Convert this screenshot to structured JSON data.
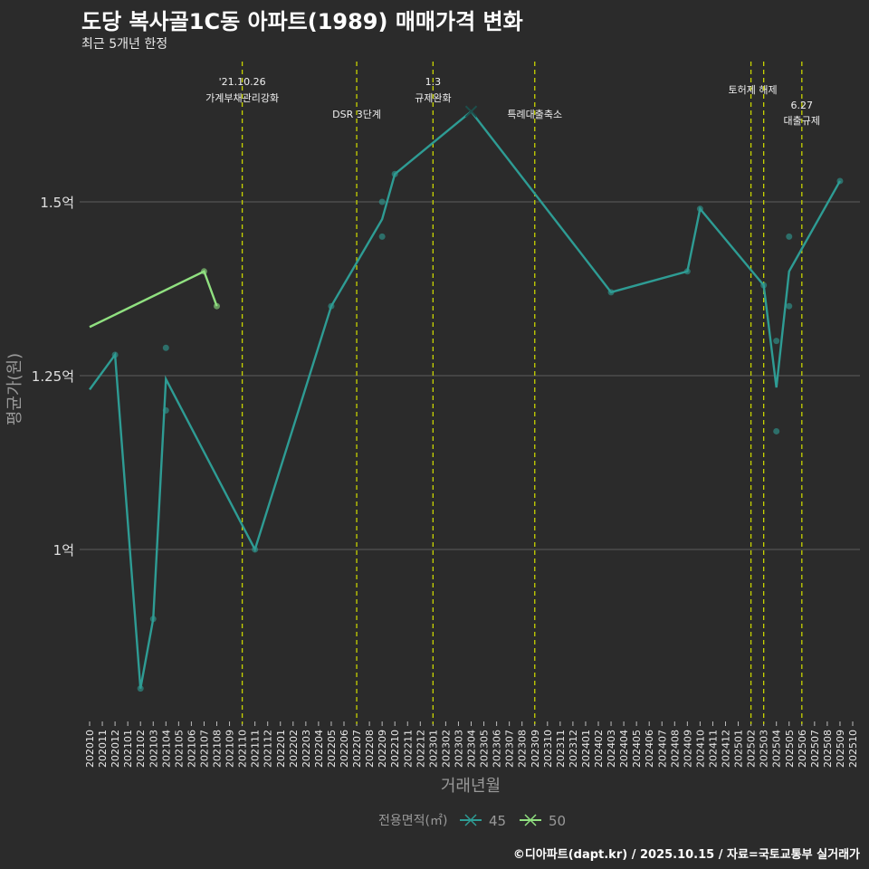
{
  "header": {
    "title": "도당 복사골1C동 아파트(1989) 매매가격 변화",
    "subtitle": "최근 5개년 한정"
  },
  "caption": "©디아파트(dapt.kr) / 2025.10.15 / 자료=국토교통부 실거래가",
  "chart_data": {
    "type": "line",
    "title": "도당 복사골1C동 아파트(1989) 매매가격 변화",
    "xlabel": "거래년월",
    "ylabel": "평균가(원)",
    "ylim": [
      0.75,
      1.7
    ],
    "yticks": [
      {
        "value": 1.0,
        "label": "1억"
      },
      {
        "value": 1.25,
        "label": "1.25억"
      },
      {
        "value": 1.5,
        "label": "1.5억"
      }
    ],
    "grid": true,
    "x_start": "2020-10",
    "x_end": "2025-10",
    "legend": {
      "title": "전용면적(㎡)",
      "position": "bottom"
    },
    "series": [
      {
        "name": "45",
        "color": "#2e9c94",
        "points": [
          [
            "2020-10",
            1.23
          ],
          [
            "2020-12",
            1.28
          ],
          [
            "2021-02",
            0.8
          ],
          [
            "2021-03",
            0.9
          ],
          [
            "2021-04",
            1.245
          ],
          [
            "2021-11",
            1.0
          ],
          [
            "2022-05",
            1.35
          ],
          [
            "2022-09",
            1.475
          ],
          [
            "2022-10",
            1.54
          ],
          [
            "2023-04",
            1.63
          ],
          [
            "2024-03",
            1.37
          ],
          [
            "2024-09",
            1.4
          ],
          [
            "2024-10",
            1.49
          ],
          [
            "2025-03",
            1.38
          ],
          [
            "2025-04",
            1.233
          ],
          [
            "2025-05",
            1.4
          ],
          [
            "2025-09",
            1.53
          ]
        ],
        "scatter": [
          [
            "2020-12",
            1.28
          ],
          [
            "2021-02",
            0.8
          ],
          [
            "2021-03",
            0.9
          ],
          [
            "2021-04",
            1.29
          ],
          [
            "2021-04",
            1.2
          ],
          [
            "2021-11",
            1.0
          ],
          [
            "2022-05",
            1.35
          ],
          [
            "2022-09",
            1.5
          ],
          [
            "2022-09",
            1.45
          ],
          [
            "2022-10",
            1.54
          ],
          [
            "2024-03",
            1.37
          ],
          [
            "2024-09",
            1.4
          ],
          [
            "2024-10",
            1.49
          ],
          [
            "2025-03",
            1.38
          ],
          [
            "2025-04",
            1.3
          ],
          [
            "2025-04",
            1.17
          ],
          [
            "2025-05",
            1.45
          ],
          [
            "2025-05",
            1.35
          ],
          [
            "2025-09",
            1.53
          ]
        ],
        "max_marker": [
          "2023-04",
          1.63
        ]
      },
      {
        "name": "50",
        "color": "#90e080",
        "points": [
          [
            "2020-10",
            1.32
          ],
          [
            "2021-07",
            1.4
          ],
          [
            "2021-08",
            1.35
          ]
        ],
        "scatter": [
          [
            "2021-07",
            1.4
          ],
          [
            "2021-08",
            1.35
          ]
        ]
      }
    ],
    "events": [
      {
        "date": "2021-10",
        "lines": [
          "'21.10.26",
          "가계부채관리강화"
        ],
        "level": 0
      },
      {
        "date": "2022-07",
        "lines": [
          "DSR 3단계"
        ],
        "level": 2
      },
      {
        "date": "2023-01",
        "lines": [
          "1.3",
          "규제완화"
        ],
        "level": 0
      },
      {
        "date": "2023-09",
        "lines": [
          "특례대출축소"
        ],
        "level": 2
      },
      {
        "date": "2025-02",
        "lines": [
          "토허제 해제"
        ],
        "level": 1
      },
      {
        "date": "2025-03",
        "lines": [],
        "level": 1
      },
      {
        "date": "2025-06",
        "lines": [
          "6.27",
          "대출규제"
        ],
        "level": 3
      }
    ],
    "event_color": "#c8d400"
  }
}
